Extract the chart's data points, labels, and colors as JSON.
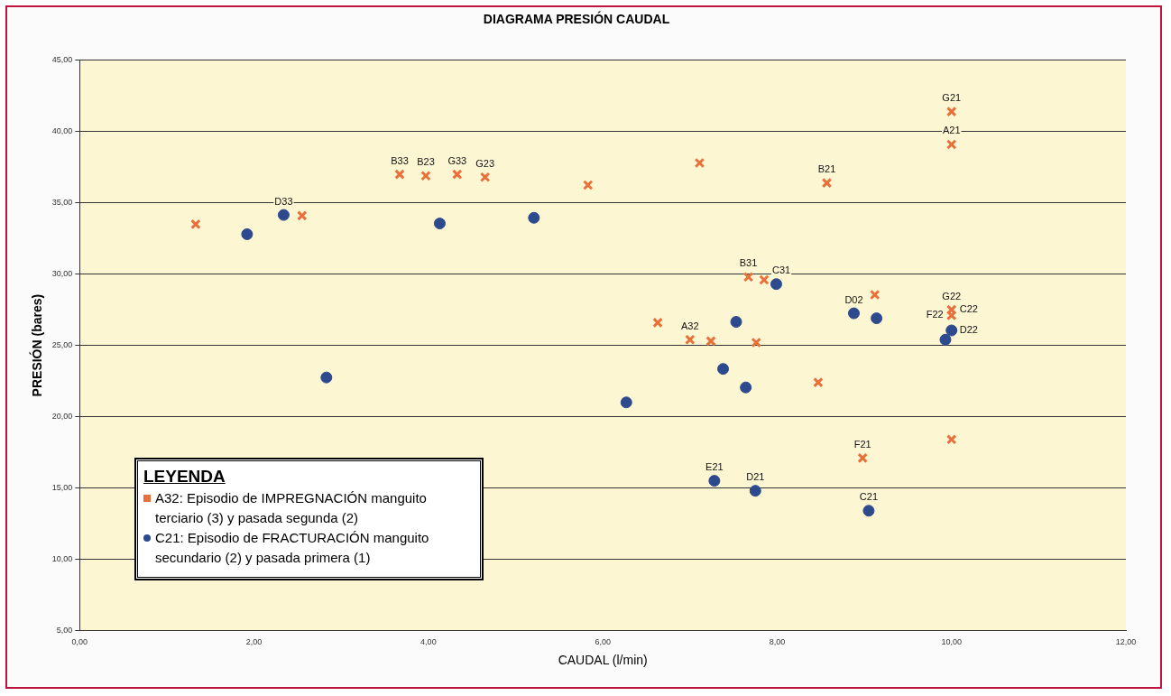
{
  "chart_data": {
    "type": "scatter",
    "title": "DIAGRAMA PRESIÓN CAUDAL",
    "xlabel": "CAUDAL (l/min)",
    "ylabel": "PRESIÓN (bares)",
    "legend_title": "LEYENDA",
    "legend": "bottom left",
    "grid": "y",
    "xlim": [
      0,
      12
    ],
    "xticks": [
      {
        "value": 0,
        "label": "0,00"
      },
      {
        "value": 2,
        "label": "2,00"
      },
      {
        "value": 4,
        "label": "4,00"
      },
      {
        "value": 6,
        "label": "6,00"
      },
      {
        "value": 8,
        "label": "8,00"
      },
      {
        "value": 10,
        "label": "10,00"
      },
      {
        "value": 12,
        "label": "12,00"
      }
    ],
    "ylim": [
      5,
      45
    ],
    "yticks": [
      {
        "value": 5,
        "label": "5,00"
      },
      {
        "value": 10,
        "label": "10,00"
      },
      {
        "value": 15,
        "label": "15,00"
      },
      {
        "value": 20,
        "label": "20,00"
      },
      {
        "value": 25,
        "label": "25,00"
      },
      {
        "value": 30,
        "label": "30,00"
      },
      {
        "value": 35,
        "label": "35,00"
      },
      {
        "value": 40,
        "label": "40,00"
      },
      {
        "value": 45,
        "label": "45,00"
      }
    ],
    "series": [
      {
        "name": "A32: Episodio de IMPREGNACIÓN manguito terciario (3) y pasada segunda (2)",
        "color": "#e8703a",
        "marker": "cross",
        "x": [
          1.33,
          2.55,
          3.67,
          3.97,
          4.33,
          4.65,
          5.83,
          7.11,
          8.57,
          10.0,
          10.0,
          7.67,
          7.85,
          9.12,
          10.0,
          10.0,
          6.63,
          7.0,
          7.24,
          7.76,
          8.47,
          10.0,
          8.98
        ],
        "values": [
          33.5,
          34.1,
          37.0,
          36.9,
          37.0,
          36.8,
          36.25,
          37.8,
          36.4,
          41.4,
          39.1,
          29.8,
          29.6,
          28.55,
          27.5,
          27.1,
          26.6,
          25.4,
          25.3,
          25.2,
          22.4,
          18.4,
          17.1
        ]
      },
      {
        "name": "C21: Episodio de FRACTURACIÓN manguito secundario (2) y pasada primera (1)",
        "color": "#2e4a8e",
        "marker": "circle",
        "x": [
          2.34,
          1.92,
          4.13,
          5.21,
          2.83,
          7.99,
          7.53,
          8.88,
          9.14,
          10.0,
          9.93,
          7.38,
          7.64,
          6.27,
          7.28,
          7.75,
          9.05
        ],
        "values": [
          34.15,
          32.8,
          33.55,
          33.95,
          22.75,
          29.3,
          26.65,
          27.25,
          26.9,
          26.05,
          25.4,
          23.35,
          22.05,
          21.0,
          15.5,
          14.8,
          13.4
        ]
      }
    ],
    "annotations": [
      {
        "text": "B33",
        "x": 3.67,
        "y": 37.0
      },
      {
        "text": "B23",
        "x": 3.97,
        "y": 36.9
      },
      {
        "text": "G33",
        "x": 4.33,
        "y": 37.0
      },
      {
        "text": "G23",
        "x": 4.65,
        "y": 36.8
      },
      {
        "text": "D33",
        "x": 2.34,
        "y": 34.15
      },
      {
        "text": "G21",
        "x": 10.0,
        "y": 41.4
      },
      {
        "text": "A21",
        "x": 10.0,
        "y": 39.1
      },
      {
        "text": "B21",
        "x": 8.57,
        "y": 36.4
      },
      {
        "text": "B31",
        "x": 7.67,
        "y": 29.8
      },
      {
        "text": "C31",
        "x": 7.85,
        "y": 29.6
      },
      {
        "text": "G22",
        "x": 10.0,
        "y": 27.5
      },
      {
        "text": "C22",
        "x": 10.0,
        "y": 27.5
      },
      {
        "text": "F22",
        "x": 10.0,
        "y": 27.1
      },
      {
        "text": "D02",
        "x": 8.88,
        "y": 27.25
      },
      {
        "text": "D22",
        "x": 10.0,
        "y": 26.05
      },
      {
        "text": "A32",
        "x": 7.0,
        "y": 25.4
      },
      {
        "text": "F21",
        "x": 8.98,
        "y": 17.1
      },
      {
        "text": "E21",
        "x": 7.28,
        "y": 15.5
      },
      {
        "text": "D21",
        "x": 7.75,
        "y": 14.8
      },
      {
        "text": "C21",
        "x": 9.05,
        "y": 13.4
      }
    ]
  }
}
